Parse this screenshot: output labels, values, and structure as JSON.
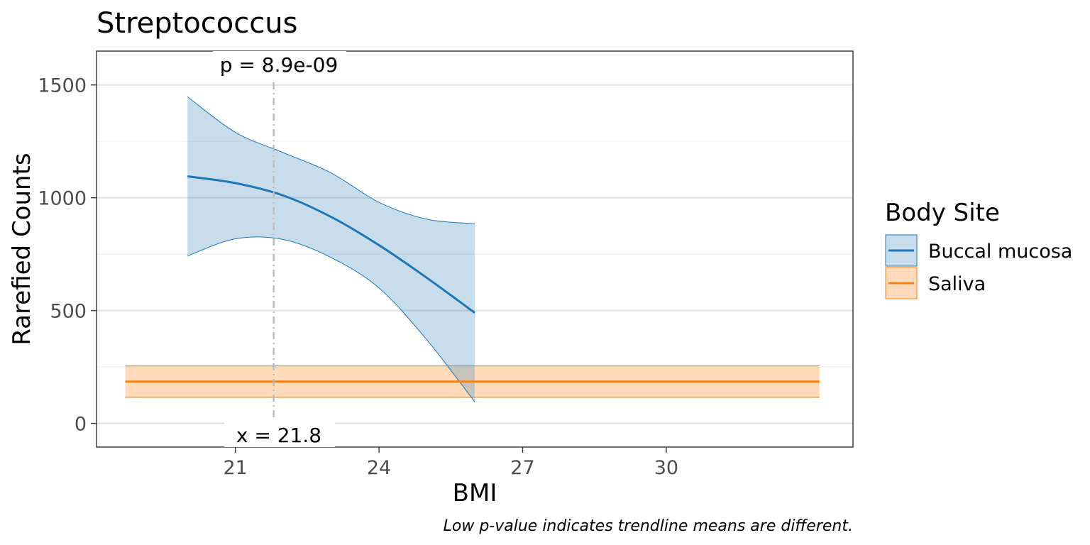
{
  "chart_data": {
    "type": "line",
    "title": "Streptococcus",
    "xlabel": "BMI",
    "ylabel": "Rarefied Counts",
    "caption": "Low p-value indicates trendline means are different.",
    "xlim": [
      18.1,
      33.9
    ],
    "ylim": [
      -105,
      1650
    ],
    "x_ticks": [
      21,
      24,
      27,
      30
    ],
    "x_tick_labels": [
      "21",
      "24",
      "27",
      "30"
    ],
    "y_ticks": [
      0,
      500,
      1000,
      1500
    ],
    "y_tick_labels": [
      "0",
      "500",
      "1000",
      "1500"
    ],
    "y_minor_ticks": [
      250,
      750,
      1250
    ],
    "grid": true,
    "legend": {
      "title": "Body Site",
      "position": "right"
    },
    "annotations": {
      "vline_x": 21.8,
      "p_label": "p = 8.9e-09",
      "x_label": "x = 21.8"
    },
    "series": [
      {
        "name": "Buccal mucosa",
        "color": "#1f77b4",
        "x": [
          20.0,
          21.0,
          22.0,
          23.0,
          24.0,
          25.0,
          26.0
        ],
        "y": [
          1095,
          1065,
          1010,
          915,
          790,
          645,
          490
        ],
        "y_lower": [
          742,
          818,
          815,
          735,
          600,
          370,
          95
        ],
        "y_upper": [
          1448,
          1290,
          1200,
          1110,
          980,
          905,
          885
        ]
      },
      {
        "name": "Saliva",
        "color": "#ff7f0e",
        "x": [
          18.7,
          33.2
        ],
        "y": [
          185,
          185
        ],
        "y_lower": [
          115,
          115
        ],
        "y_upper": [
          255,
          255
        ]
      }
    ]
  }
}
